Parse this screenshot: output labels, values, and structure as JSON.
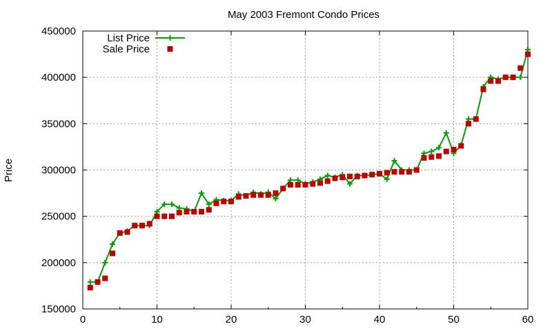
{
  "chart_data": {
    "type": "line",
    "title": "May 2003 Fremont Condo Prices",
    "xlabel": "",
    "ylabel": "Price",
    "xlim": [
      0,
      60
    ],
    "ylim": [
      150000,
      450000
    ],
    "grid": true,
    "legend_position": "top-left",
    "x_ticks": [
      "0",
      "10",
      "20",
      "30",
      "40",
      "50",
      "60"
    ],
    "y_ticks": [
      "150000",
      "200000",
      "250000",
      "300000",
      "350000",
      "400000",
      "450000"
    ],
    "x_tick_values": [
      0,
      10,
      20,
      30,
      40,
      50,
      60
    ],
    "y_tick_values": [
      150000,
      200000,
      250000,
      300000,
      350000,
      400000,
      450000
    ],
    "x": [
      1,
      2,
      3,
      4,
      5,
      6,
      7,
      8,
      9,
      10,
      11,
      12,
      13,
      14,
      15,
      16,
      17,
      18,
      19,
      20,
      21,
      22,
      23,
      24,
      25,
      26,
      27,
      28,
      29,
      30,
      31,
      32,
      33,
      34,
      35,
      36,
      37,
      38,
      39,
      40,
      41,
      42,
      43,
      44,
      45,
      46,
      47,
      48,
      49,
      50,
      51,
      52,
      53,
      54,
      55,
      56,
      57,
      58,
      59,
      60
    ],
    "series": [
      {
        "name": "List Price",
        "color": "#00a000",
        "marker": "plus",
        "line": true,
        "values": [
          179000,
          179000,
          200000,
          220000,
          232000,
          234000,
          240000,
          240000,
          240000,
          255000,
          263000,
          263000,
          259000,
          258000,
          255000,
          275000,
          263000,
          268000,
          267000,
          267000,
          274000,
          272000,
          276000,
          274000,
          276000,
          269000,
          280000,
          289000,
          289000,
          285000,
          287000,
          290000,
          294000,
          292000,
          295000,
          285000,
          294000,
          294000,
          295000,
          296000,
          290000,
          310000,
          300000,
          300000,
          300000,
          318000,
          320000,
          324000,
          340000,
          318000,
          327000,
          355000,
          355000,
          390000,
          400000,
          398000,
          400000,
          400000,
          400000,
          430000
        ]
      },
      {
        "name": "Sale Price",
        "color": "#c00000",
        "marker": "square",
        "line": false,
        "values": [
          173000,
          179000,
          183000,
          210000,
          232000,
          233000,
          240000,
          240000,
          242000,
          250000,
          250000,
          250000,
          254000,
          255000,
          255000,
          255000,
          257000,
          264000,
          266000,
          266000,
          271000,
          272000,
          273000,
          273000,
          273000,
          275000,
          280000,
          284000,
          284000,
          284000,
          285000,
          286000,
          288000,
          291000,
          292000,
          293000,
          293000,
          294000,
          295000,
          296000,
          297000,
          298000,
          298000,
          298000,
          300000,
          313000,
          314000,
          315000,
          320000,
          322000,
          326000,
          350000,
          355000,
          387000,
          396000,
          396000,
          400000,
          400000,
          410000,
          425000
        ]
      }
    ]
  }
}
